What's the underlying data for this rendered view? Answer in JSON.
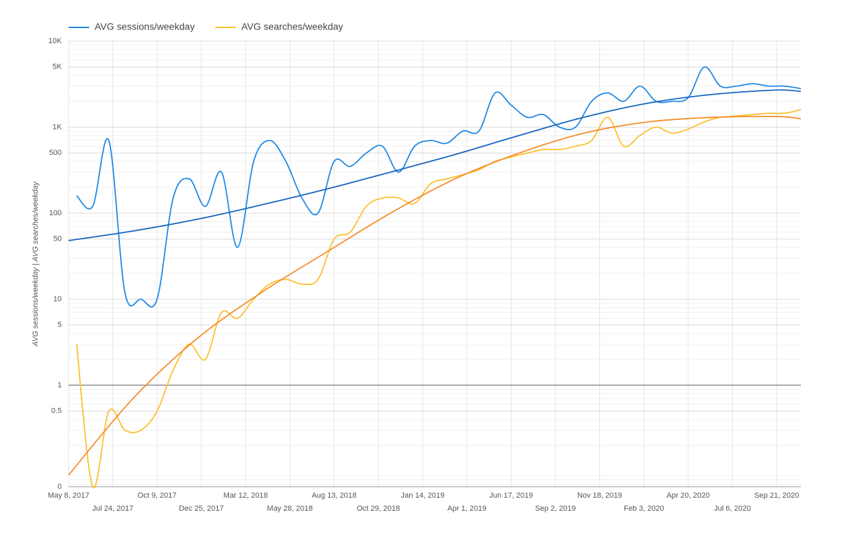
{
  "chart_data": {
    "type": "line",
    "y_label": "AVG sessions/weekday | AVG searches/weekday",
    "log_scale": true,
    "grid": true,
    "legend": "top-left",
    "x": [
      "2017-05-22",
      "2017-06-19",
      "2017-07-17",
      "2017-08-14",
      "2017-09-11",
      "2017-10-09",
      "2017-11-06",
      "2017-12-04",
      "2018-01-01",
      "2018-01-29",
      "2018-02-26",
      "2018-03-26",
      "2018-04-23",
      "2018-05-21",
      "2018-06-18",
      "2018-07-16",
      "2018-08-13",
      "2018-09-10",
      "2018-10-08",
      "2018-11-05",
      "2018-12-03",
      "2018-12-31",
      "2019-01-28",
      "2019-02-25",
      "2019-03-25",
      "2019-04-22",
      "2019-05-20",
      "2019-06-17",
      "2019-07-15",
      "2019-08-12",
      "2019-09-09",
      "2019-10-07",
      "2019-11-04",
      "2019-12-02",
      "2019-12-30",
      "2020-01-27",
      "2020-02-24",
      "2020-03-23",
      "2020-04-20",
      "2020-05-18",
      "2020-06-15",
      "2020-07-13",
      "2020-08-10",
      "2020-09-07",
      "2020-10-05",
      "2020-11-02"
    ],
    "series": [
      {
        "name": "AVG sessions/weekday",
        "color": "#1e88e5",
        "values": [
          160,
          120,
          700,
          12,
          10,
          10,
          150,
          250,
          120,
          300,
          40,
          400,
          700,
          400,
          150,
          100,
          400,
          350,
          500,
          600,
          300,
          600,
          700,
          650,
          900,
          900,
          2500,
          1800,
          1300,
          1400,
          1000,
          1000,
          2000,
          2500,
          2000,
          3000,
          2000,
          2000,
          2200,
          5000,
          3000,
          3000,
          3200,
          3000,
          3000,
          2800
        ]
      },
      {
        "name": "AVG searches/weekday",
        "color": "#fbc02d",
        "values": [
          3,
          0,
          0.5,
          0.3,
          0.3,
          0.5,
          1.5,
          3,
          2,
          7,
          6,
          10,
          15,
          17,
          15,
          17,
          50,
          60,
          120,
          150,
          150,
          130,
          220,
          250,
          280,
          320,
          400,
          450,
          500,
          550,
          550,
          600,
          700,
          1300,
          600,
          800,
          1000,
          850,
          950,
          1150,
          1300,
          1350,
          1400,
          1450,
          1450,
          1600
        ]
      }
    ],
    "trendlines": {
      "x": [
        "2017-05-08",
        "2017-08-28",
        "2017-12-18",
        "2018-04-09",
        "2018-07-30",
        "2018-11-19",
        "2019-03-11",
        "2019-07-01",
        "2019-10-21",
        "2020-02-10",
        "2020-06-01",
        "2020-09-21",
        "2020-11-02"
      ],
      "series": [
        {
          "color": "#1565c0",
          "values": [
            48,
            62,
            85,
            125,
            190,
            300,
            480,
            800,
            1300,
            1900,
            2400,
            2700,
            2600
          ]
        },
        {
          "color": "#f58d2b",
          "values": [
            0.09,
            0.7,
            3.5,
            12,
            35,
            100,
            250,
            500,
            850,
            1150,
            1300,
            1330,
            1250
          ]
        }
      ]
    },
    "xlim": [
      "2017-05-08",
      "2020-11-02"
    ],
    "xticks": [
      {
        "value": "2017-05-08",
        "label": "May 8, 2017"
      },
      {
        "value": "2017-07-24",
        "label": "Jul 24, 2017"
      },
      {
        "value": "2017-10-09",
        "label": "Oct 9, 2017"
      },
      {
        "value": "2017-12-25",
        "label": "Dec 25, 2017"
      },
      {
        "value": "2018-03-12",
        "label": "Mar 12, 2018"
      },
      {
        "value": "2018-05-28",
        "label": "May 28, 2018"
      },
      {
        "value": "2018-08-13",
        "label": "Aug 13, 2018"
      },
      {
        "value": "2018-10-29",
        "label": "Oct 29, 2018"
      },
      {
        "value": "2019-01-14",
        "label": "Jan 14, 2019"
      },
      {
        "value": "2019-04-01",
        "label": "Apr 1, 2019"
      },
      {
        "value": "2019-06-17",
        "label": "Jun 17, 2019"
      },
      {
        "value": "2019-09-02",
        "label": "Sep 2, 2019"
      },
      {
        "value": "2019-11-18",
        "label": "Nov 18, 2019"
      },
      {
        "value": "2020-02-03",
        "label": "Feb 3, 2020"
      },
      {
        "value": "2020-04-20",
        "label": "Apr 20, 2020"
      },
      {
        "value": "2020-07-06",
        "label": "Jul 6, 2020"
      },
      {
        "value": "2020-09-21",
        "label": "Sep 21, 2020"
      }
    ],
    "ylim": [
      0.066,
      10000
    ],
    "yticks": [
      0,
      0.5,
      1,
      5,
      10,
      50,
      100,
      500,
      {
        "value": 1000,
        "label": "1K"
      },
      {
        "value": 5000,
        "label": "5K"
      },
      {
        "value": 10000,
        "label": "10K"
      }
    ]
  }
}
